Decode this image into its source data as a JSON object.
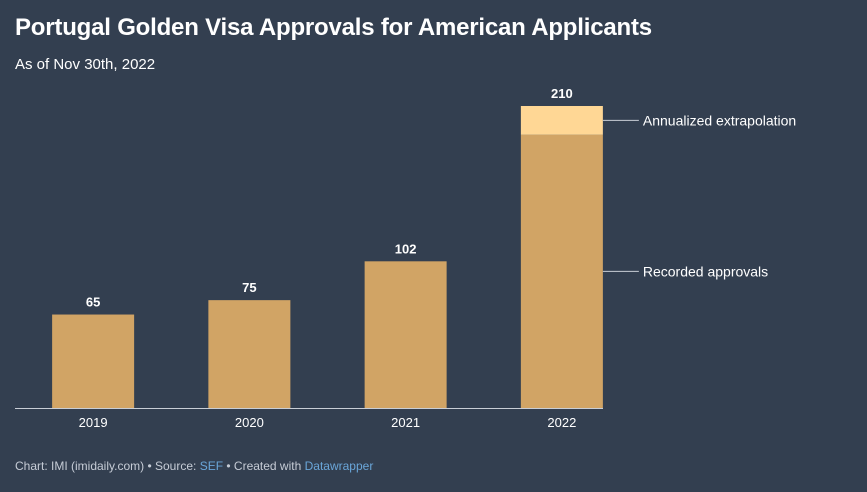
{
  "title": "Portugal Golden Visa Approvals for American Applicants",
  "subtitle": "As of Nov 30th, 2022",
  "colors": {
    "background": "#333f50",
    "recorded": "#d1a465",
    "extrapolated": "#ffd795",
    "axis": "#c9ced6",
    "text": "#ffffff",
    "footer_text": "#c6ccd6",
    "link": "#6aa6d9"
  },
  "chart_data": {
    "type": "bar",
    "stacked": true,
    "categories": [
      "2019",
      "2020",
      "2021",
      "2022"
    ],
    "series": [
      {
        "name": "Recorded approvals",
        "values": [
          65,
          75,
          102,
          190
        ]
      },
      {
        "name": "Annualized extrapolation",
        "values": [
          0,
          0,
          0,
          20
        ]
      }
    ],
    "totals": [
      "65",
      "75",
      "102",
      "210"
    ],
    "ylim": [
      0,
      210
    ],
    "grid": false,
    "legend": "right, inline labels"
  },
  "footer": {
    "prefix": "Chart: IMI (imidaily.com) • Source: ",
    "source_link": "SEF",
    "middle": " • Created with ",
    "tool_link": "Datawrapper"
  }
}
